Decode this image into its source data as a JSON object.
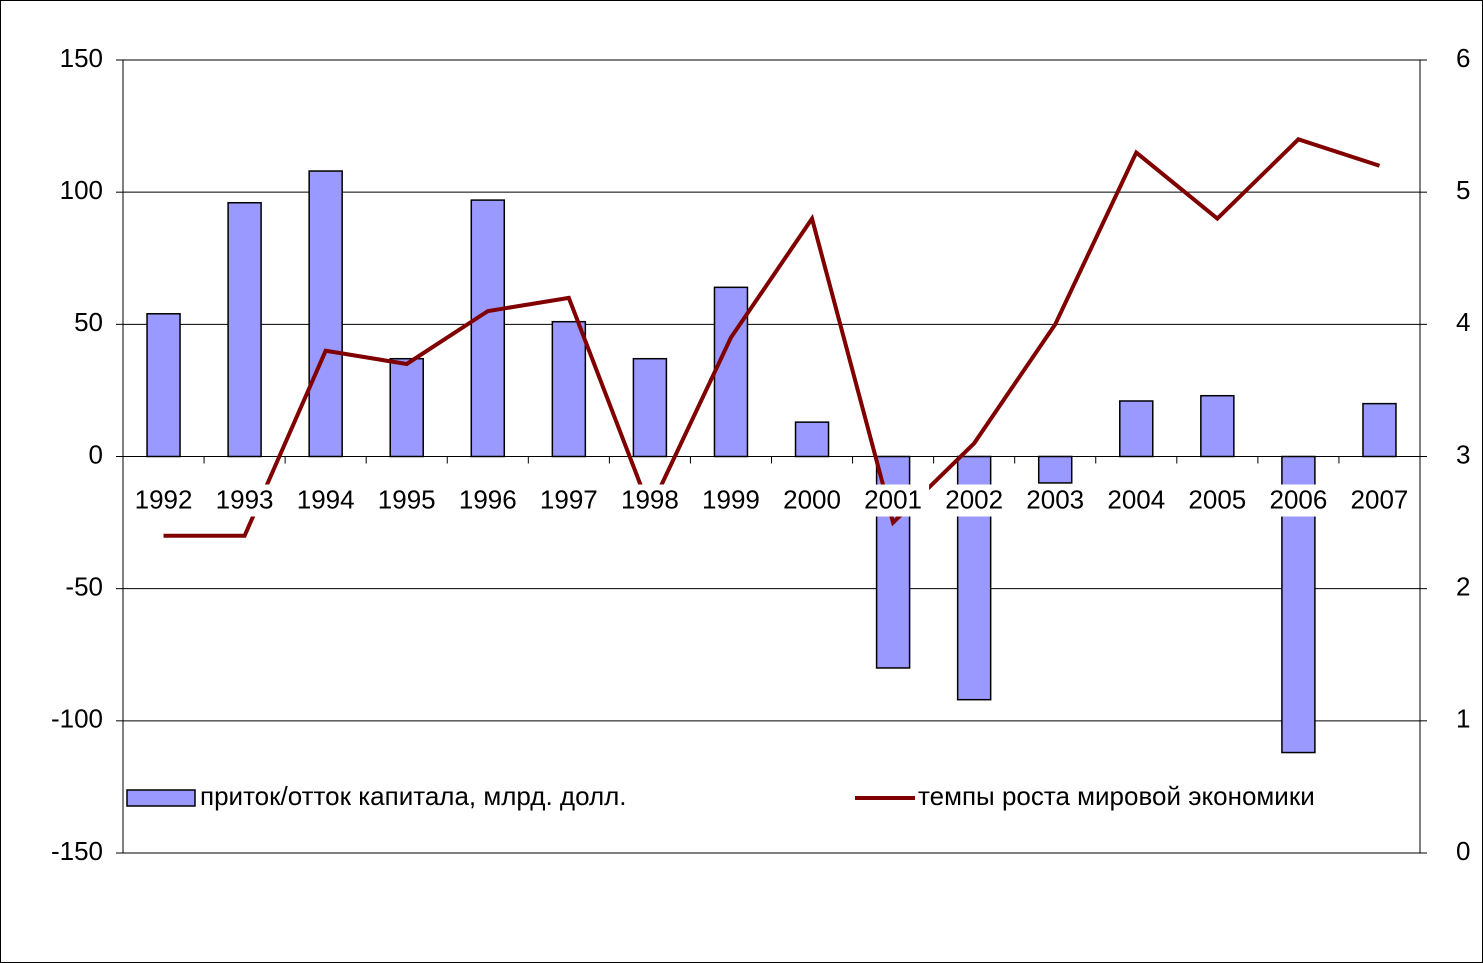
{
  "chart_data": {
    "type": "bar_line",
    "categories": [
      "1992",
      "1993",
      "1994",
      "1995",
      "1996",
      "1997",
      "1998",
      "1999",
      "2000",
      "2001",
      "2002",
      "2003",
      "2004",
      "2005",
      "2006",
      "2007"
    ],
    "series": [
      {
        "name": "приток/отток капитала, млрд. долл.",
        "type": "bar",
        "color": "#9999ff",
        "values": [
          54,
          96,
          108,
          37,
          97,
          51,
          37,
          64,
          13,
          -80,
          -92,
          -10,
          21,
          23,
          -112,
          20
        ]
      },
      {
        "name": "темпы роста мировой экономики",
        "type": "line",
        "axis": "y2",
        "color": "#800000",
        "values": [
          2.4,
          2.4,
          3.8,
          3.7,
          4.1,
          4.2,
          2.6,
          3.9,
          4.8,
          2.5,
          3.1,
          4.0,
          5.3,
          4.8,
          5.4,
          5.2
        ]
      }
    ],
    "ylim": [
      -150,
      150
    ],
    "yticks": [
      -150,
      -100,
      -50,
      0,
      50,
      100,
      150
    ],
    "y2lim": [
      0,
      6
    ],
    "y2ticks": [
      0,
      1,
      2,
      3,
      4,
      5,
      6
    ],
    "grid": true,
    "legend": "bottom"
  }
}
